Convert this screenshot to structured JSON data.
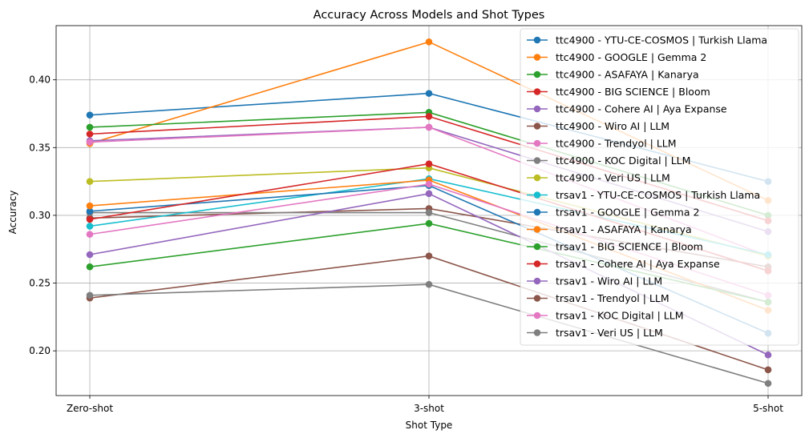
{
  "chart_data": {
    "type": "line",
    "title": "Accuracy Across Models and Shot Types",
    "xlabel": "Shot Type",
    "ylabel": "Accuracy",
    "categories": [
      "Zero-shot",
      "3-shot",
      "5-shot"
    ],
    "ylim": [
      0.167,
      0.44
    ],
    "yticks": [
      "0.20",
      "0.25",
      "0.30",
      "0.35",
      "0.40"
    ],
    "grid": true,
    "legend_position": "top-right",
    "series": [
      {
        "name": "ttc4900 - YTU-CE-COSMOS | Turkish Llama",
        "color": "#1f77b4",
        "values": [
          0.374,
          0.39,
          0.325
        ]
      },
      {
        "name": "ttc4900 - GOOGLE | Gemma 2",
        "color": "#ff7f0e",
        "values": [
          0.353,
          0.428,
          0.311
        ]
      },
      {
        "name": "ttc4900 - ASAFAYA | Kanarya",
        "color": "#2ca02c",
        "values": [
          0.365,
          0.376,
          0.3
        ]
      },
      {
        "name": "ttc4900 - BIG SCIENCE | Bloom",
        "color": "#d62728",
        "values": [
          0.36,
          0.373,
          0.296
        ]
      },
      {
        "name": "ttc4900 - Cohere AI | Aya Expanse",
        "color": "#9467bd",
        "values": [
          0.355,
          0.365,
          0.288
        ]
      },
      {
        "name": "ttc4900 - Wiro AI | LLM",
        "color": "#8c564b",
        "values": [
          0.298,
          0.305,
          0.262
        ]
      },
      {
        "name": "ttc4900 - Trendyol | LLM",
        "color": "#e377c2",
        "values": [
          0.354,
          0.365,
          0.27
        ]
      },
      {
        "name": "ttc4900 - KOC Digital | LLM",
        "color": "#7f7f7f",
        "values": [
          0.302,
          0.302,
          0.236
        ]
      },
      {
        "name": "ttc4900 - Veri US | LLM",
        "color": "#bcbd22",
        "values": [
          0.325,
          0.335,
          0.27
        ]
      },
      {
        "name": "trsav1 - YTU-CE-COSMOS | Turkish Llama",
        "color": "#17becf",
        "values": [
          0.292,
          0.327,
          0.271
        ]
      },
      {
        "name": "trsav1 - GOOGLE | Gemma 2",
        "color": "#1f77b4",
        "values": [
          0.303,
          0.322,
          0.213
        ]
      },
      {
        "name": "trsav1 - ASAFAYA | Kanarya",
        "color": "#ff7f0e",
        "values": [
          0.307,
          0.326,
          0.23
        ]
      },
      {
        "name": "trsav1 - BIG SCIENCE | Bloom",
        "color": "#2ca02c",
        "values": [
          0.262,
          0.294,
          0.236
        ]
      },
      {
        "name": "trsav1 - Cohere AI | Aya Expanse",
        "color": "#d62728",
        "values": [
          0.297,
          0.338,
          0.259
        ]
      },
      {
        "name": "trsav1 - Wiro AI | LLM",
        "color": "#9467bd",
        "values": [
          0.271,
          0.316,
          0.197
        ]
      },
      {
        "name": "trsav1 - Trendyol | LLM",
        "color": "#8c564b",
        "values": [
          0.239,
          0.27,
          0.186
        ]
      },
      {
        "name": "trsav1 - KOC Digital | LLM",
        "color": "#e377c2",
        "values": [
          0.286,
          0.323,
          0.241
        ]
      },
      {
        "name": "trsav1 - Veri US | LLM",
        "color": "#7f7f7f",
        "values": [
          0.241,
          0.249,
          0.176
        ]
      }
    ]
  }
}
